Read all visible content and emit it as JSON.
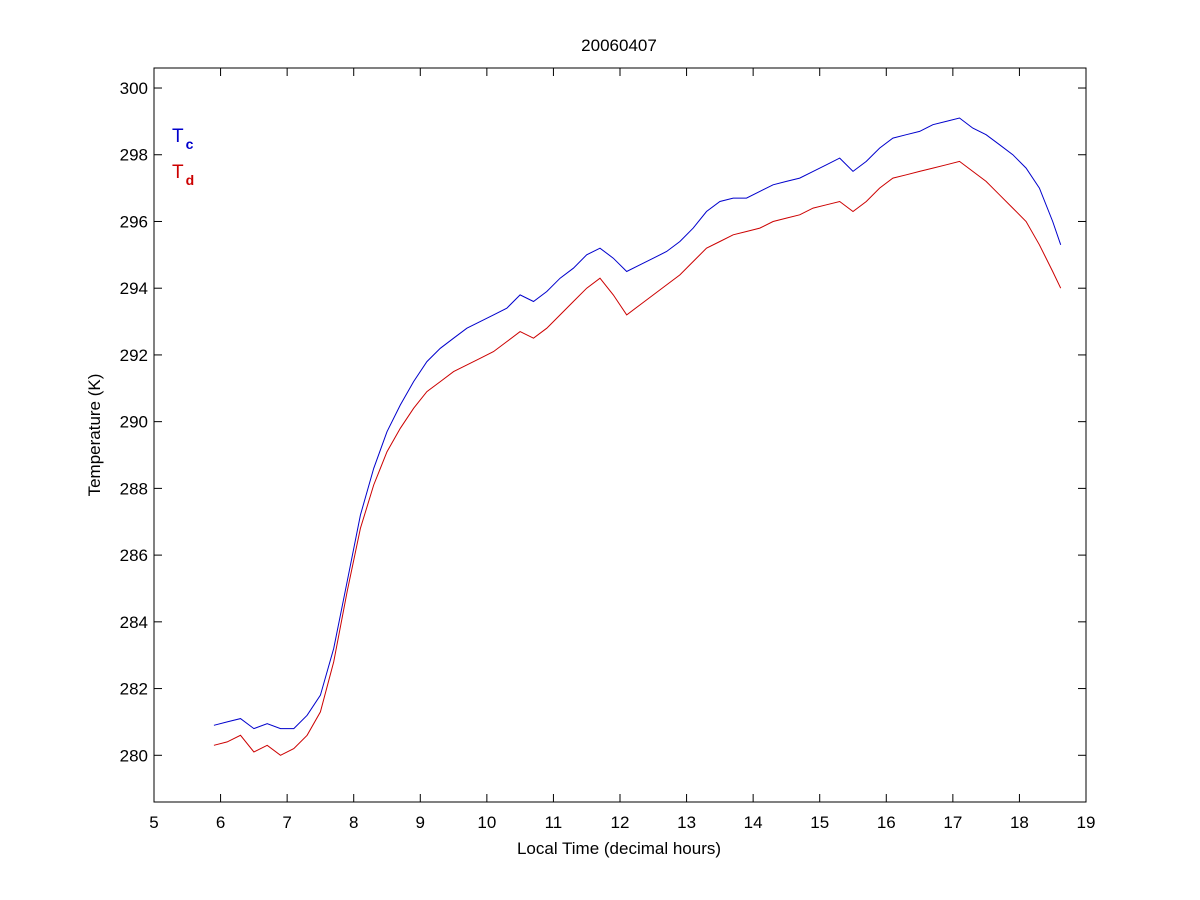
{
  "chart_data": {
    "type": "line",
    "title": "20060407",
    "xlabel": "Local Time (decimal hours)",
    "ylabel": "Temperature (K)",
    "xlim": [
      5,
      19
    ],
    "ylim": [
      278.6,
      300.6
    ],
    "xticks": [
      5,
      6,
      7,
      8,
      9,
      10,
      11,
      12,
      13,
      14,
      15,
      16,
      17,
      18,
      19
    ],
    "yticks": [
      280,
      282,
      284,
      286,
      288,
      290,
      292,
      294,
      296,
      298,
      300
    ],
    "grid": false,
    "legend_position": "top-left",
    "series": [
      {
        "name": "T",
        "subscript": "c",
        "color": "#0000cc",
        "x": [
          5.9,
          6.1,
          6.3,
          6.5,
          6.7,
          6.9,
          7.1,
          7.3,
          7.5,
          7.7,
          7.9,
          8.1,
          8.3,
          8.5,
          8.7,
          8.9,
          9.1,
          9.3,
          9.5,
          9.7,
          9.9,
          10.1,
          10.3,
          10.5,
          10.7,
          10.9,
          11.1,
          11.3,
          11.5,
          11.7,
          11.9,
          12.1,
          12.3,
          12.5,
          12.7,
          12.9,
          13.1,
          13.3,
          13.5,
          13.7,
          13.9,
          14.1,
          14.3,
          14.5,
          14.7,
          14.9,
          15.1,
          15.3,
          15.5,
          15.7,
          15.9,
          16.1,
          16.3,
          16.5,
          16.7,
          16.9,
          17.1,
          17.3,
          17.5,
          17.7,
          17.9,
          18.1,
          18.3,
          18.5,
          18.62
        ],
        "y": [
          280.9,
          281.0,
          281.1,
          280.8,
          280.95,
          280.8,
          280.8,
          281.2,
          281.8,
          283.2,
          285.2,
          287.2,
          288.6,
          289.7,
          290.5,
          291.2,
          291.8,
          292.2,
          292.5,
          292.8,
          293.0,
          293.2,
          293.4,
          293.8,
          293.6,
          293.9,
          294.3,
          294.6,
          295.0,
          295.2,
          294.9,
          294.5,
          294.7,
          294.9,
          295.1,
          295.4,
          295.8,
          296.3,
          296.6,
          296.7,
          296.7,
          296.9,
          297.1,
          297.2,
          297.3,
          297.5,
          297.7,
          297.9,
          297.5,
          297.8,
          298.2,
          298.5,
          298.6,
          298.7,
          298.9,
          299.0,
          299.1,
          298.8,
          298.6,
          298.3,
          298.0,
          297.6,
          297.0,
          296.0,
          295.3
        ]
      },
      {
        "name": "T",
        "subscript": "d",
        "color": "#cc0000",
        "x": [
          5.9,
          6.1,
          6.3,
          6.5,
          6.7,
          6.9,
          7.1,
          7.3,
          7.5,
          7.7,
          7.9,
          8.1,
          8.3,
          8.5,
          8.7,
          8.9,
          9.1,
          9.3,
          9.5,
          9.7,
          9.9,
          10.1,
          10.3,
          10.5,
          10.7,
          10.9,
          11.1,
          11.3,
          11.5,
          11.7,
          11.9,
          12.1,
          12.3,
          12.5,
          12.7,
          12.9,
          13.1,
          13.3,
          13.5,
          13.7,
          13.9,
          14.1,
          14.3,
          14.5,
          14.7,
          14.9,
          15.1,
          15.3,
          15.5,
          15.7,
          15.9,
          16.1,
          16.3,
          16.5,
          16.7,
          16.9,
          17.1,
          17.3,
          17.5,
          17.7,
          17.9,
          18.1,
          18.3,
          18.5,
          18.62
        ],
        "y": [
          280.3,
          280.4,
          280.6,
          280.1,
          280.3,
          280.0,
          280.2,
          280.6,
          281.3,
          282.8,
          284.9,
          286.8,
          288.1,
          289.1,
          289.8,
          290.4,
          290.9,
          291.2,
          291.5,
          291.7,
          291.9,
          292.1,
          292.4,
          292.7,
          292.5,
          292.8,
          293.2,
          293.6,
          294.0,
          294.3,
          293.8,
          293.2,
          293.5,
          293.8,
          294.1,
          294.4,
          294.8,
          295.2,
          295.4,
          295.6,
          295.7,
          295.8,
          296.0,
          296.1,
          296.2,
          296.4,
          296.5,
          296.6,
          296.3,
          296.6,
          297.0,
          297.3,
          297.4,
          297.5,
          297.6,
          297.7,
          297.8,
          297.5,
          297.2,
          296.8,
          296.4,
          296.0,
          295.3,
          294.5,
          294.0
        ]
      }
    ]
  }
}
